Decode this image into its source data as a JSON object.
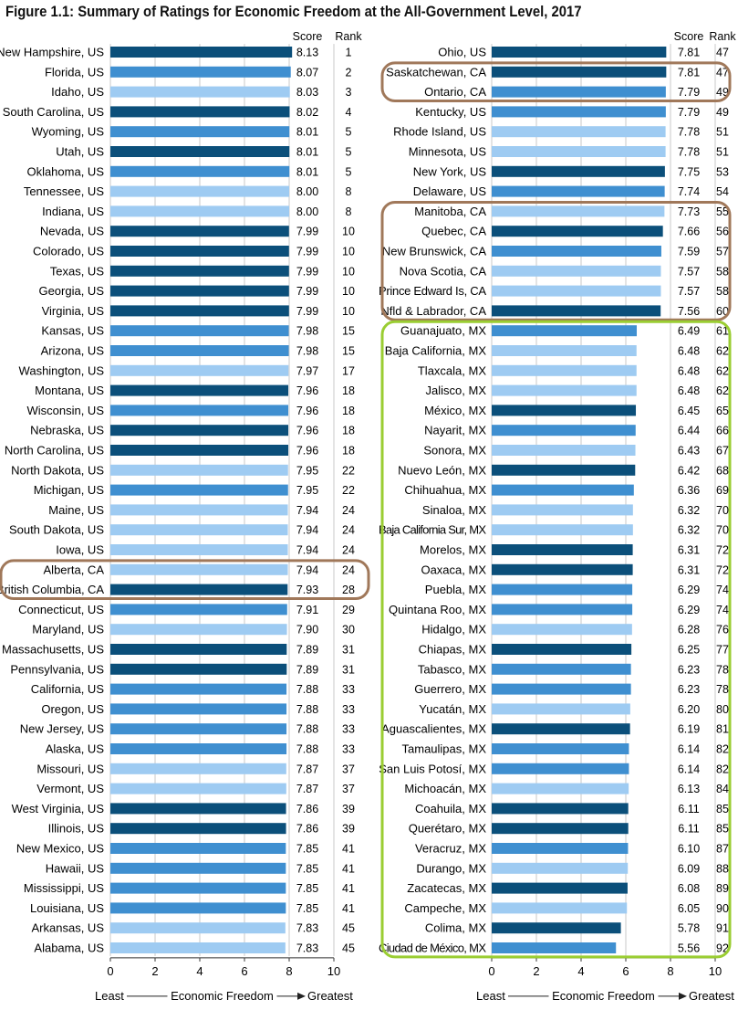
{
  "title": "Figure 1.1: Summary of Ratings for Economic Freedom at the All-Government Level, 2017",
  "colors": {
    "dark": "#0b4f7a",
    "mid": "#3f8fd0",
    "light": "#9ecbf2",
    "grid": "#c8c8c8",
    "highlight_canada": "#a0785a",
    "highlight_mexico": "#9acd32"
  },
  "chart_data": [
    {
      "type": "bar",
      "orientation": "horizontal",
      "xlim": [
        0,
        10
      ],
      "xticks": [
        "0",
        "2",
        "4",
        "6",
        "8",
        "10"
      ],
      "column_headers": [
        "Score",
        "Rank"
      ],
      "axis_caption": {
        "left": "Least",
        "center": "Economic Freedom",
        "right": "Greatest"
      },
      "highlights": [
        {
          "rows": [
            "Alberta, CA",
            "British Columbia, CA"
          ],
          "color": "highlight_canada"
        }
      ],
      "rows": [
        {
          "label": "New Hampshire, US",
          "score": 8.13,
          "score_text": "8.13",
          "rank": "1",
          "shade": "dark"
        },
        {
          "label": "Florida, US",
          "score": 8.07,
          "score_text": "8.07",
          "rank": "2",
          "shade": "mid"
        },
        {
          "label": "Idaho, US",
          "score": 8.03,
          "score_text": "8.03",
          "rank": "3",
          "shade": "light"
        },
        {
          "label": "South Carolina, US",
          "score": 8.02,
          "score_text": "8.02",
          "rank": "4",
          "shade": "dark"
        },
        {
          "label": "Wyoming, US",
          "score": 8.01,
          "score_text": "8.01",
          "rank": "5",
          "shade": "mid"
        },
        {
          "label": "Utah, US",
          "score": 8.01,
          "score_text": "8.01",
          "rank": "5",
          "shade": "dark"
        },
        {
          "label": "Oklahoma, US",
          "score": 8.01,
          "score_text": "8.01",
          "rank": "5",
          "shade": "mid"
        },
        {
          "label": "Tennessee, US",
          "score": 8.0,
          "score_text": "8.00",
          "rank": "8",
          "shade": "light"
        },
        {
          "label": "Indiana, US",
          "score": 8.0,
          "score_text": "8.00",
          "rank": "8",
          "shade": "light"
        },
        {
          "label": "Nevada, US",
          "score": 7.99,
          "score_text": "7.99",
          "rank": "10",
          "shade": "dark"
        },
        {
          "label": "Colorado, US",
          "score": 7.99,
          "score_text": "7.99",
          "rank": "10",
          "shade": "dark"
        },
        {
          "label": "Texas, US",
          "score": 7.99,
          "score_text": "7.99",
          "rank": "10",
          "shade": "dark"
        },
        {
          "label": "Georgia, US",
          "score": 7.99,
          "score_text": "7.99",
          "rank": "10",
          "shade": "dark"
        },
        {
          "label": "Virginia, US",
          "score": 7.99,
          "score_text": "7.99",
          "rank": "10",
          "shade": "dark"
        },
        {
          "label": "Kansas, US",
          "score": 7.98,
          "score_text": "7.98",
          "rank": "15",
          "shade": "mid"
        },
        {
          "label": "Arizona, US",
          "score": 7.98,
          "score_text": "7.98",
          "rank": "15",
          "shade": "mid"
        },
        {
          "label": "Washington, US",
          "score": 7.97,
          "score_text": "7.97",
          "rank": "17",
          "shade": "light"
        },
        {
          "label": "Montana, US",
          "score": 7.96,
          "score_text": "7.96",
          "rank": "18",
          "shade": "dark"
        },
        {
          "label": "Wisconsin, US",
          "score": 7.96,
          "score_text": "7.96",
          "rank": "18",
          "shade": "mid"
        },
        {
          "label": "Nebraska, US",
          "score": 7.96,
          "score_text": "7.96",
          "rank": "18",
          "shade": "dark"
        },
        {
          "label": "North Carolina, US",
          "score": 7.96,
          "score_text": "7.96",
          "rank": "18",
          "shade": "dark"
        },
        {
          "label": "North Dakota, US",
          "score": 7.95,
          "score_text": "7.95",
          "rank": "22",
          "shade": "light"
        },
        {
          "label": "Michigan, US",
          "score": 7.95,
          "score_text": "7.95",
          "rank": "22",
          "shade": "mid"
        },
        {
          "label": "Maine, US",
          "score": 7.94,
          "score_text": "7.94",
          "rank": "24",
          "shade": "light"
        },
        {
          "label": "South Dakota, US",
          "score": 7.94,
          "score_text": "7.94",
          "rank": "24",
          "shade": "light"
        },
        {
          "label": "Iowa, US",
          "score": 7.94,
          "score_text": "7.94",
          "rank": "24",
          "shade": "light"
        },
        {
          "label": "Alberta, CA",
          "score": 7.94,
          "score_text": "7.94",
          "rank": "24",
          "shade": "light"
        },
        {
          "label": "British Columbia, CA",
          "score": 7.93,
          "score_text": "7.93",
          "rank": "28",
          "shade": "dark"
        },
        {
          "label": "Connecticut, US",
          "score": 7.91,
          "score_text": "7.91",
          "rank": "29",
          "shade": "mid"
        },
        {
          "label": "Maryland, US",
          "score": 7.9,
          "score_text": "7.90",
          "rank": "30",
          "shade": "light"
        },
        {
          "label": "Massachusetts, US",
          "score": 7.89,
          "score_text": "7.89",
          "rank": "31",
          "shade": "dark"
        },
        {
          "label": "Pennsylvania, US",
          "score": 7.89,
          "score_text": "7.89",
          "rank": "31",
          "shade": "dark"
        },
        {
          "label": "California, US",
          "score": 7.88,
          "score_text": "7.88",
          "rank": "33",
          "shade": "mid"
        },
        {
          "label": "Oregon, US",
          "score": 7.88,
          "score_text": "7.88",
          "rank": "33",
          "shade": "mid"
        },
        {
          "label": "New Jersey, US",
          "score": 7.88,
          "score_text": "7.88",
          "rank": "33",
          "shade": "mid"
        },
        {
          "label": "Alaska, US",
          "score": 7.88,
          "score_text": "7.88",
          "rank": "33",
          "shade": "mid"
        },
        {
          "label": "Missouri, US",
          "score": 7.87,
          "score_text": "7.87",
          "rank": "37",
          "shade": "light"
        },
        {
          "label": "Vermont, US",
          "score": 7.87,
          "score_text": "7.87",
          "rank": "37",
          "shade": "light"
        },
        {
          "label": "West Virginia, US",
          "score": 7.86,
          "score_text": "7.86",
          "rank": "39",
          "shade": "dark"
        },
        {
          "label": "Illinois, US",
          "score": 7.86,
          "score_text": "7.86",
          "rank": "39",
          "shade": "dark"
        },
        {
          "label": "New Mexico, US",
          "score": 7.85,
          "score_text": "7.85",
          "rank": "41",
          "shade": "mid"
        },
        {
          "label": "Hawaii, US",
          "score": 7.85,
          "score_text": "7.85",
          "rank": "41",
          "shade": "mid"
        },
        {
          "label": "Mississippi, US",
          "score": 7.85,
          "score_text": "7.85",
          "rank": "41",
          "shade": "mid"
        },
        {
          "label": "Louisiana, US",
          "score": 7.85,
          "score_text": "7.85",
          "rank": "41",
          "shade": "mid"
        },
        {
          "label": "Arkansas, US",
          "score": 7.83,
          "score_text": "7.83",
          "rank": "45",
          "shade": "light"
        },
        {
          "label": "Alabama, US",
          "score": 7.83,
          "score_text": "7.83",
          "rank": "45",
          "shade": "light"
        }
      ]
    },
    {
      "type": "bar",
      "orientation": "horizontal",
      "xlim": [
        0,
        10
      ],
      "xticks": [
        "0",
        "2",
        "4",
        "6",
        "8",
        "10"
      ],
      "column_headers": [
        "Score",
        "Rank"
      ],
      "axis_caption": {
        "left": "Least",
        "center": "Economic Freedom",
        "right": "Greatest"
      },
      "highlights": [
        {
          "rows": [
            "Saskatchewan, CA",
            "Ontario, CA"
          ],
          "color": "highlight_canada"
        },
        {
          "rows": [
            "Manitoba, CA",
            "Nfld & Labrador, CA"
          ],
          "color": "highlight_canada"
        },
        {
          "rows": [
            "Guanajuato, MX",
            "Ciudad de México, MX"
          ],
          "color": "highlight_mexico"
        }
      ],
      "rows": [
        {
          "label": "Ohio, US",
          "score": 7.81,
          "score_text": "7.81",
          "rank": "47",
          "shade": "dark"
        },
        {
          "label": "Saskatchewan, CA",
          "score": 7.81,
          "score_text": "7.81",
          "rank": "47",
          "shade": "dark"
        },
        {
          "label": "Ontario, CA",
          "score": 7.79,
          "score_text": "7.79",
          "rank": "49",
          "shade": "mid"
        },
        {
          "label": "Kentucky, US",
          "score": 7.79,
          "score_text": "7.79",
          "rank": "49",
          "shade": "mid"
        },
        {
          "label": "Rhode Island, US",
          "score": 7.78,
          "score_text": "7.78",
          "rank": "51",
          "shade": "light"
        },
        {
          "label": "Minnesota, US",
          "score": 7.78,
          "score_text": "7.78",
          "rank": "51",
          "shade": "light"
        },
        {
          "label": "New York, US",
          "score": 7.75,
          "score_text": "7.75",
          "rank": "53",
          "shade": "dark"
        },
        {
          "label": "Delaware, US",
          "score": 7.74,
          "score_text": "7.74",
          "rank": "54",
          "shade": "mid"
        },
        {
          "label": "Manitoba, CA",
          "score": 7.73,
          "score_text": "7.73",
          "rank": "55",
          "shade": "light"
        },
        {
          "label": "Quebec, CA",
          "score": 7.66,
          "score_text": "7.66",
          "rank": "56",
          "shade": "dark"
        },
        {
          "label": "New Brunswick, CA",
          "score": 7.59,
          "score_text": "7.59",
          "rank": "57",
          "shade": "mid"
        },
        {
          "label": "Nova Scotia, CA",
          "score": 7.57,
          "score_text": "7.57",
          "rank": "58",
          "shade": "light"
        },
        {
          "label": "Prince Edward Is, CA",
          "score": 7.57,
          "score_text": "7.57",
          "rank": "58",
          "shade": "light"
        },
        {
          "label": "Nfld & Labrador, CA",
          "score": 7.56,
          "score_text": "7.56",
          "rank": "60",
          "shade": "dark"
        },
        {
          "label": "Guanajuato, MX",
          "score": 6.49,
          "score_text": "6.49",
          "rank": "61",
          "shade": "mid"
        },
        {
          "label": "Baja California, MX",
          "score": 6.48,
          "score_text": "6.48",
          "rank": "62",
          "shade": "light"
        },
        {
          "label": "Tlaxcala, MX",
          "score": 6.48,
          "score_text": "6.48",
          "rank": "62",
          "shade": "light"
        },
        {
          "label": "Jalisco, MX",
          "score": 6.48,
          "score_text": "6.48",
          "rank": "62",
          "shade": "light"
        },
        {
          "label": "México, MX",
          "score": 6.45,
          "score_text": "6.45",
          "rank": "65",
          "shade": "dark"
        },
        {
          "label": "Nayarit, MX",
          "score": 6.44,
          "score_text": "6.44",
          "rank": "66",
          "shade": "mid"
        },
        {
          "label": "Sonora, MX",
          "score": 6.43,
          "score_text": "6.43",
          "rank": "67",
          "shade": "light"
        },
        {
          "label": "Nuevo León, MX",
          "score": 6.42,
          "score_text": "6.42",
          "rank": "68",
          "shade": "dark"
        },
        {
          "label": "Chihuahua, MX",
          "score": 6.36,
          "score_text": "6.36",
          "rank": "69",
          "shade": "mid"
        },
        {
          "label": "Sinaloa, MX",
          "score": 6.32,
          "score_text": "6.32",
          "rank": "70",
          "shade": "light"
        },
        {
          "label": "Baja California Sur, MX",
          "score": 6.32,
          "score_text": "6.32",
          "rank": "70",
          "shade": "light"
        },
        {
          "label": "Morelos, MX",
          "score": 6.31,
          "score_text": "6.31",
          "rank": "72",
          "shade": "dark"
        },
        {
          "label": "Oaxaca, MX",
          "score": 6.31,
          "score_text": "6.31",
          "rank": "72",
          "shade": "dark"
        },
        {
          "label": "Puebla, MX",
          "score": 6.29,
          "score_text": "6.29",
          "rank": "74",
          "shade": "mid"
        },
        {
          "label": "Quintana Roo, MX",
          "score": 6.29,
          "score_text": "6.29",
          "rank": "74",
          "shade": "mid"
        },
        {
          "label": "Hidalgo, MX",
          "score": 6.28,
          "score_text": "6.28",
          "rank": "76",
          "shade": "light"
        },
        {
          "label": "Chiapas, MX",
          "score": 6.25,
          "score_text": "6.25",
          "rank": "77",
          "shade": "dark"
        },
        {
          "label": "Tabasco, MX",
          "score": 6.23,
          "score_text": "6.23",
          "rank": "78",
          "shade": "mid"
        },
        {
          "label": "Guerrero, MX",
          "score": 6.23,
          "score_text": "6.23",
          "rank": "78",
          "shade": "mid"
        },
        {
          "label": "Yucatán, MX",
          "score": 6.2,
          "score_text": "6.20",
          "rank": "80",
          "shade": "light"
        },
        {
          "label": "Aguascalientes, MX",
          "score": 6.19,
          "score_text": "6.19",
          "rank": "81",
          "shade": "dark"
        },
        {
          "label": "Tamaulipas, MX",
          "score": 6.14,
          "score_text": "6.14",
          "rank": "82",
          "shade": "mid"
        },
        {
          "label": "San Luis Potosí, MX",
          "score": 6.14,
          "score_text": "6.14",
          "rank": "82",
          "shade": "mid"
        },
        {
          "label": "Michoacán, MX",
          "score": 6.13,
          "score_text": "6.13",
          "rank": "84",
          "shade": "light"
        },
        {
          "label": "Coahuila, MX",
          "score": 6.11,
          "score_text": "6.11",
          "rank": "85",
          "shade": "dark"
        },
        {
          "label": "Querétaro, MX",
          "score": 6.11,
          "score_text": "6.11",
          "rank": "85",
          "shade": "dark"
        },
        {
          "label": "Veracruz, MX",
          "score": 6.1,
          "score_text": "6.10",
          "rank": "87",
          "shade": "mid"
        },
        {
          "label": "Durango, MX",
          "score": 6.09,
          "score_text": "6.09",
          "rank": "88",
          "shade": "light"
        },
        {
          "label": "Zacatecas, MX",
          "score": 6.08,
          "score_text": "6.08",
          "rank": "89",
          "shade": "dark"
        },
        {
          "label": "Campeche, MX",
          "score": 6.05,
          "score_text": "6.05",
          "rank": "90",
          "shade": "light"
        },
        {
          "label": "Colima, MX",
          "score": 5.78,
          "score_text": "5.78",
          "rank": "91",
          "shade": "dark"
        },
        {
          "label": "Ciudad de México, MX",
          "score": 5.56,
          "score_text": "5.56",
          "rank": "92",
          "shade": "mid"
        }
      ]
    }
  ]
}
